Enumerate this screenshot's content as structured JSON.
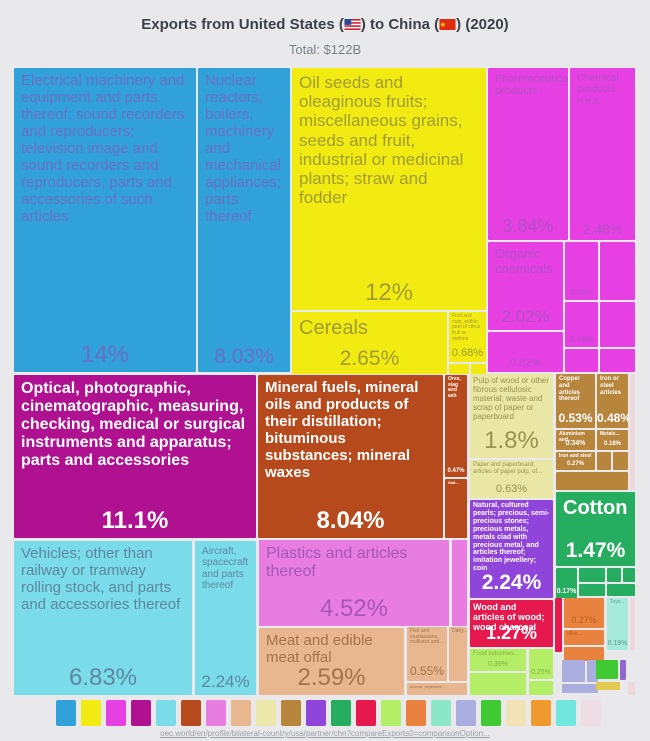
{
  "title": {
    "part1": "Exports from United States (",
    "part2": ") to China (",
    "part3": ") (2020)"
  },
  "subtitle": "Total: $122B",
  "footer": {
    "link": "oec.world/en/profile/bilateral-country/usa/partner/chn?compareExports0=comparisonOption..."
  },
  "legend": {
    "colors": [
      "#31a1d9",
      "#f1eb12",
      "#e640e2",
      "#b01191",
      "#7adce8",
      "#b64a1d",
      "#e77de1",
      "#e9b78f",
      "#ece8ab",
      "#b8853d",
      "#8f45d9",
      "#27ad60",
      "#e6194f",
      "#b4ee66",
      "#e8823e",
      "#8ce6c8",
      "#a9aede",
      "#3fca33",
      "#f2e2b8",
      "#ef9a2d",
      "#70e6df",
      "#f2d4da"
    ]
  },
  "chart_data": {
    "type": "treemap",
    "title": "Exports from United States to China (2020)",
    "total": "$122B",
    "unit": "% of total exports",
    "items": [
      {
        "label": "Electrical machinery and equipment and parts thereof; sound recorders and reproducers; television image and sound recorders and reproducers, parts and accessories of such articles",
        "share": 14
      },
      {
        "label": "Oil seeds and oleaginous fruits; miscellaneous grains, seeds and fruit, industrial or medicinal plants; straw and fodder",
        "share": 12
      },
      {
        "label": "Optical, photographic, cinematographic, measuring, checking, medical or surgical instruments and apparatus; parts and accessories",
        "share": 11.1
      },
      {
        "label": "Mineral fuels, mineral oils and products of their distillation; bituminous substances; mineral waxes",
        "share": 8.04
      },
      {
        "label": "Nuclear reactors, boilers, machinery and mechanical appliances; parts thereof",
        "share": 8.03
      },
      {
        "label": "Vehicles; other than railway or tramway rolling stock, and parts and accessories thereof",
        "share": 6.83
      },
      {
        "label": "Plastics and articles thereof",
        "share": 4.52
      },
      {
        "label": "Pharmaceutical products",
        "share": 3.84
      },
      {
        "label": "Cereals",
        "share": 2.65
      },
      {
        "label": "Meat and edible meat offal",
        "share": 2.59
      },
      {
        "label": "Chemical products n.e.s.",
        "share": 2.48
      },
      {
        "label": "Natural, cultured pearls; precious, semi-precious stones; precious metals, metals clad with precious metal, and articles thereof; imitation jewellery; coin",
        "share": 2.24
      },
      {
        "label": "Aircraft, spacecraft and parts thereof",
        "share": 2.24
      },
      {
        "label": "Organic chemicals",
        "share": 2.02
      },
      {
        "label": "Pulp of wood or other fibrous cellulosic material; waste and scrap of paper or paperboard",
        "share": 1.8
      },
      {
        "label": "Cotton",
        "share": 1.47
      },
      {
        "label": "Wood and articles of wood; wood charcoal",
        "share": 1.27
      },
      {
        "label": "Fruit and nuts, edible; peel of citrus fruit or melons",
        "share": 0.68
      },
      {
        "label": "Paper and paperboard; articles of paper pulp, of...",
        "share": 0.63
      },
      {
        "label": "Fish and crustaceans, molluscs and...",
        "share": 0.55
      },
      {
        "label": "Copper and articles thereof",
        "share": 0.53
      },
      {
        "label": "Iron or steel articles",
        "share": 0.48
      },
      {
        "label": "Ores, slag and ash",
        "share": 0.47
      },
      {
        "label": "Food industries...",
        "share": 0.39
      },
      {
        "label": "Aluminium and...",
        "share": 0.34
      },
      {
        "label": "Iron and steel",
        "share": 0.27
      },
      {
        "label": "Toys...",
        "share": 0.19
      },
      {
        "label": "Metals...",
        "share": 0.18
      }
    ]
  },
  "treemap": {
    "cells": [
      {
        "label": "Electrical machinery and equipment and parts thereof; sound recorders and reproducers; television image and sound recorders and reproducers, parts and accessories of such articles",
        "value": "14%",
        "bg": "#31a1d9",
        "fg": "#6a6fc4"
      },
      {
        "label": "Nuclear reactors, boilers, machinery and mechanical appliances; parts thereof",
        "value": "8.03%",
        "bg": "#31a1d9",
        "fg": "#6a6fc4"
      },
      {
        "label": "Oil seeds and oleaginous fruits; miscellaneous grains, seeds and fruit, industrial or medicinal plants; straw and fodder",
        "value": "12%",
        "bg": "#f1eb12",
        "fg": "#a39b36"
      },
      {
        "label": "Cereals",
        "value": "2.65%",
        "bg": "#f1eb12",
        "fg": "#a39b36"
      },
      {
        "label": "Fruit and nuts, edible; peel of citrus fruit or melons",
        "value": "0.68%",
        "bg": "#f1eb12",
        "fg": "#a39b36"
      },
      {
        "label": "",
        "value": "",
        "bg": "#f1eb12",
        "fg": "#a39b36"
      },
      {
        "label": "",
        "value": "",
        "bg": "#f1eb12",
        "fg": "#a39b36"
      },
      {
        "label": "Pharmaceutical products",
        "value": "3.84%",
        "bg": "#e640e2",
        "fg": "#b04ec6"
      },
      {
        "label": "Chemical products n.e.s.",
        "value": "2.48%",
        "bg": "#e640e2",
        "fg": "#b04ec6"
      },
      {
        "label": "Organic chemicals",
        "value": "2.02%",
        "bg": "#e640e2",
        "fg": "#b04ec6"
      },
      {
        "label": "",
        "value": "0.66%",
        "bg": "#e640e2",
        "fg": "#b04ec6"
      },
      {
        "label": "",
        "value": "0.46%",
        "bg": "#e640e2",
        "fg": "#b04ec6"
      },
      {
        "label": "",
        "value": "",
        "bg": "#e640e2",
        "fg": "#b04ec6"
      },
      {
        "label": "",
        "value": "",
        "bg": "#e640e2",
        "fg": "#b04ec6"
      },
      {
        "label": "",
        "value": "0.82%",
        "bg": "#e640e2",
        "fg": "#b04ec6"
      },
      {
        "label": "",
        "value": "",
        "bg": "#e640e2",
        "fg": "#b04ec6"
      },
      {
        "label": "",
        "value": "",
        "bg": "#e640e2",
        "fg": "#b04ec6"
      },
      {
        "label": "Optical, photographic, cinematographic, measuring, checking, medical or surgical instruments and apparatus; parts and accessories",
        "value": "11.1%",
        "bg": "#b01191",
        "fg": "#ffffff"
      },
      {
        "label": "Mineral fuels, mineral oils and products of their distillation; bituminous substances; mineral waxes",
        "value": "8.04%",
        "bg": "#b64a1d",
        "fg": "#ffffff"
      },
      {
        "label": "Ores, slag and ash",
        "value": "0.47%",
        "bg": "#b64a1d",
        "fg": "#ffffff"
      },
      {
        "label": "Salt...",
        "value": "",
        "bg": "#b64a1d",
        "fg": "#ffffff"
      },
      {
        "label": "Pulp of wood or other fibrous cellulosic material; waste and scrap of paper or paperboard",
        "value": "1.8%",
        "bg": "#e9e6a6",
        "fg": "#9a9350"
      },
      {
        "label": "Paper and paperboard; articles of paper pulp, of...",
        "value": "0.63%",
        "bg": "#e9e6a6",
        "fg": "#9a9350"
      },
      {
        "label": "Copper and articles thereof",
        "value": "0.53%",
        "bg": "#b8853d",
        "fg": "#ffffff"
      },
      {
        "label": "Iron or steel articles",
        "value": "0.48%",
        "bg": "#b8853d",
        "fg": "#ffffff"
      },
      {
        "label": "Aluminium and...",
        "value": "0.34%",
        "bg": "#b8853d",
        "fg": "#ffffff"
      },
      {
        "label": "Metals...",
        "value": "0.18%",
        "bg": "#b8853d",
        "fg": "#ffffff"
      },
      {
        "label": "Iron and steel",
        "value": "0.27%",
        "bg": "#b8853d",
        "fg": "#ffffff"
      },
      {
        "label": "",
        "value": "",
        "bg": "#b8853d",
        "fg": "#ffffff"
      },
      {
        "label": "",
        "value": "",
        "bg": "#b8853d",
        "fg": "#ffffff"
      },
      {
        "label": "",
        "value": "",
        "bg": "#b8853d",
        "fg": "#ffffff"
      },
      {
        "label": "",
        "value": "",
        "bg": "#eed8dc",
        "fg": "#cc99aa"
      },
      {
        "label": "Natural, cultured pearls; precious, semi-precious stones; precious metals, metals clad with precious metal, and articles thereof; imitation jewellery; coin",
        "value": "2.24%",
        "bg": "#8f45d9",
        "fg": "#ffffff"
      },
      {
        "label": "Cotton",
        "value": "1.47%",
        "bg": "#27ad60",
        "fg": "#ffffff"
      },
      {
        "label": "",
        "value": "0.17%",
        "bg": "#27ad60",
        "fg": "#ffffff"
      },
      {
        "label": "",
        "value": "",
        "bg": "#27ad60",
        "fg": "#ffffff"
      },
      {
        "label": "",
        "value": "",
        "bg": "#27ad60",
        "fg": "#ffffff"
      },
      {
        "label": "",
        "value": "",
        "bg": "#27ad60",
        "fg": "#ffffff"
      },
      {
        "label": "",
        "value": "",
        "bg": "#27ad60",
        "fg": "#ffffff"
      },
      {
        "label": "",
        "value": "",
        "bg": "#27ad60",
        "fg": "#ffffff"
      },
      {
        "label": "Wood and articles of wood; wood charcoal",
        "value": "1.27%",
        "bg": "#e6194f",
        "fg": "#ffffff"
      },
      {
        "label": "",
        "value": "",
        "bg": "#e6194f",
        "fg": "#ffffff"
      },
      {
        "label": "",
        "value": "0.27%",
        "bg": "#e8823e",
        "fg": "#b85a1d"
      },
      {
        "label": "Misc...",
        "value": "",
        "bg": "#e8823e",
        "fg": "#b85a1d"
      },
      {
        "label": "",
        "value": "",
        "bg": "#e8823e",
        "fg": "#b85a1d"
      },
      {
        "label": "Toys...",
        "value": "0.19%",
        "bg": "#a7e9da",
        "fg": "#5d9f90"
      },
      {
        "label": "",
        "value": "",
        "bg": "#eed8dc",
        "fg": "#cc99aa"
      },
      {
        "label": "Food industries...",
        "value": "0.39%",
        "bg": "#b4ee66",
        "fg": "#82b13e"
      },
      {
        "label": "",
        "value": "0.25%",
        "bg": "#b4ee66",
        "fg": "#82b13e"
      },
      {
        "label": "",
        "value": "",
        "bg": "#b4ee66",
        "fg": "#82b13e"
      },
      {
        "label": "",
        "value": "",
        "bg": "#b4ee66",
        "fg": "#82b13e"
      },
      {
        "label": "",
        "value": "",
        "bg": "#a9aede",
        "fg": "#777fc0"
      },
      {
        "label": "",
        "value": "",
        "bg": "#a9aede",
        "fg": "#777fc0"
      },
      {
        "label": "",
        "value": "",
        "bg": "#a9aede",
        "fg": "#777fc0"
      },
      {
        "label": "",
        "value": "",
        "bg": "#3fca33",
        "fg": "#ffffff"
      },
      {
        "label": "",
        "value": "",
        "bg": "#9168ce",
        "fg": "#ffffff"
      },
      {
        "label": "",
        "value": "",
        "bg": "#e2ca52",
        "fg": "#a8922e"
      },
      {
        "label": "",
        "value": "",
        "bg": "#eed8dc",
        "fg": "#cc99aa"
      },
      {
        "label": "Vehicles; other than railway or tramway rolling stock, and parts and accessories thereof",
        "value": "6.83%",
        "bg": "#7adce8",
        "fg": "#5e88a1"
      },
      {
        "label": "Aircraft, spacecraft and parts thereof",
        "value": "2.24%",
        "bg": "#7adce8",
        "fg": "#5e88a1"
      },
      {
        "label": "Plastics and articles thereof",
        "value": "4.52%",
        "bg": "#e77de1",
        "fg": "#a657b5"
      },
      {
        "label": "",
        "value": "",
        "bg": "#e77de1",
        "fg": "#a657b5"
      },
      {
        "label": "Meat and edible meat offal",
        "value": "2.59%",
        "bg": "#e9b78f",
        "fg": "#a4734b"
      },
      {
        "label": "Fish and crustaceans, molluscs and...",
        "value": "0.55%",
        "bg": "#e9b78f",
        "fg": "#a4734b"
      },
      {
        "label": "Dairy...",
        "value": "",
        "bg": "#e9b78f",
        "fg": "#a4734b"
      },
      {
        "label": "Animal, vegetable...",
        "value": "",
        "bg": "#e9b78f",
        "fg": "#a4734b"
      }
    ]
  }
}
